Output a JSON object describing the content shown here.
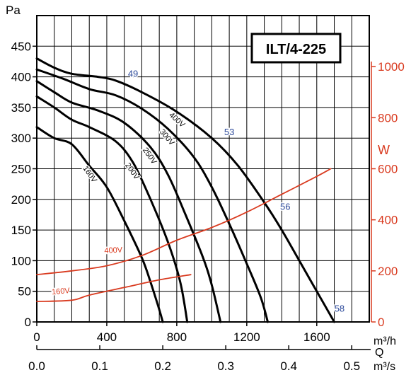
{
  "chart_data": {
    "type": "line",
    "title": "ILT/4-225",
    "ylabel": "Pa",
    "ylabel_right": "W",
    "xlabel": "m³/h",
    "xlabel_secondary": "m³/s",
    "q_label": "Q",
    "xlim": [
      0,
      1900
    ],
    "ylim": [
      0,
      500
    ],
    "ylim_right": [
      0,
      1200
    ],
    "x_ticks": [
      0,
      400,
      800,
      1200,
      1600
    ],
    "x_tick_labels": [
      "0",
      "400",
      "800",
      "1200",
      "1600"
    ],
    "x2_ticks": [
      0,
      0.1,
      0.2,
      0.3,
      0.4,
      0.5
    ],
    "x2_tick_labels": [
      "0.0",
      "0.1",
      "0.2",
      "0.3",
      "0.4",
      "0.5"
    ],
    "y_ticks": [
      0,
      50,
      100,
      150,
      200,
      250,
      300,
      350,
      400,
      450
    ],
    "y_tick_labels": [
      "0",
      "50",
      "100",
      "150",
      "200",
      "250",
      "300",
      "350",
      "400",
      "450"
    ],
    "y_right_ticks": [
      0,
      200,
      400,
      600,
      800,
      1000
    ],
    "y_right_tick_labels": [
      "0",
      "200",
      "400",
      "600",
      "800",
      "1000"
    ],
    "grid": true,
    "colors": {
      "pressure": "#000000",
      "power": "#d93a1f",
      "right_axis": "#d93a1f",
      "label_blue": "#2e4b9b"
    },
    "series": [
      {
        "name": "400V",
        "axis": "left",
        "points": [
          [
            0,
            430
          ],
          [
            100,
            415
          ],
          [
            200,
            405
          ],
          [
            350,
            400
          ],
          [
            450,
            394
          ],
          [
            600,
            375
          ],
          [
            800,
            343
          ],
          [
            1000,
            300
          ],
          [
            1150,
            255
          ],
          [
            1300,
            195
          ],
          [
            1400,
            150
          ],
          [
            1500,
            100
          ],
          [
            1600,
            50
          ],
          [
            1700,
            0
          ]
        ]
      },
      {
        "name": "300V",
        "axis": "left",
        "points": [
          [
            0,
            412
          ],
          [
            150,
            397
          ],
          [
            300,
            380
          ],
          [
            450,
            370
          ],
          [
            600,
            348
          ],
          [
            750,
            315
          ],
          [
            900,
            268
          ],
          [
            1000,
            220
          ],
          [
            1100,
            160
          ],
          [
            1200,
            95
          ],
          [
            1280,
            40
          ],
          [
            1320,
            0
          ]
        ]
      },
      {
        "name": "250V",
        "axis": "left",
        "points": [
          [
            0,
            393
          ],
          [
            100,
            375
          ],
          [
            200,
            358
          ],
          [
            350,
            345
          ],
          [
            500,
            325
          ],
          [
            650,
            285
          ],
          [
            750,
            240
          ],
          [
            850,
            175
          ],
          [
            950,
            105
          ],
          [
            1000,
            60
          ],
          [
            1050,
            0
          ]
        ]
      },
      {
        "name": "200V",
        "axis": "left",
        "points": [
          [
            0,
            368
          ],
          [
            100,
            350
          ],
          [
            200,
            330
          ],
          [
            300,
            318
          ],
          [
            450,
            295
          ],
          [
            550,
            260
          ],
          [
            650,
            200
          ],
          [
            750,
            130
          ],
          [
            820,
            65
          ],
          [
            860,
            0
          ]
        ]
      },
      {
        "name": "160V",
        "axis": "left",
        "points": [
          [
            0,
            318
          ],
          [
            100,
            300
          ],
          [
            200,
            290
          ],
          [
            300,
            255
          ],
          [
            400,
            220
          ],
          [
            500,
            165
          ],
          [
            600,
            105
          ],
          [
            650,
            65
          ],
          [
            700,
            20
          ],
          [
            720,
            0
          ]
        ]
      },
      {
        "name": "400V",
        "axis": "right",
        "points": [
          [
            0,
            185
          ],
          [
            200,
            200
          ],
          [
            400,
            220
          ],
          [
            600,
            260
          ],
          [
            800,
            320
          ],
          [
            1000,
            370
          ],
          [
            1200,
            430
          ],
          [
            1400,
            500
          ],
          [
            1600,
            570
          ],
          [
            1680,
            600
          ]
        ]
      },
      {
        "name": "160V",
        "axis": "right",
        "points": [
          [
            0,
            80
          ],
          [
            200,
            85
          ],
          [
            300,
            105
          ],
          [
            500,
            135
          ],
          [
            700,
            165
          ],
          [
            880,
            185
          ]
        ]
      }
    ],
    "point_labels": [
      {
        "text": "49",
        "x": 550,
        "y": 400
      },
      {
        "text": "53",
        "x": 1100,
        "y": 305
      },
      {
        "text": "56",
        "x": 1420,
        "y": 183
      },
      {
        "text": "58",
        "x": 1730,
        "y": 17
      }
    ]
  }
}
